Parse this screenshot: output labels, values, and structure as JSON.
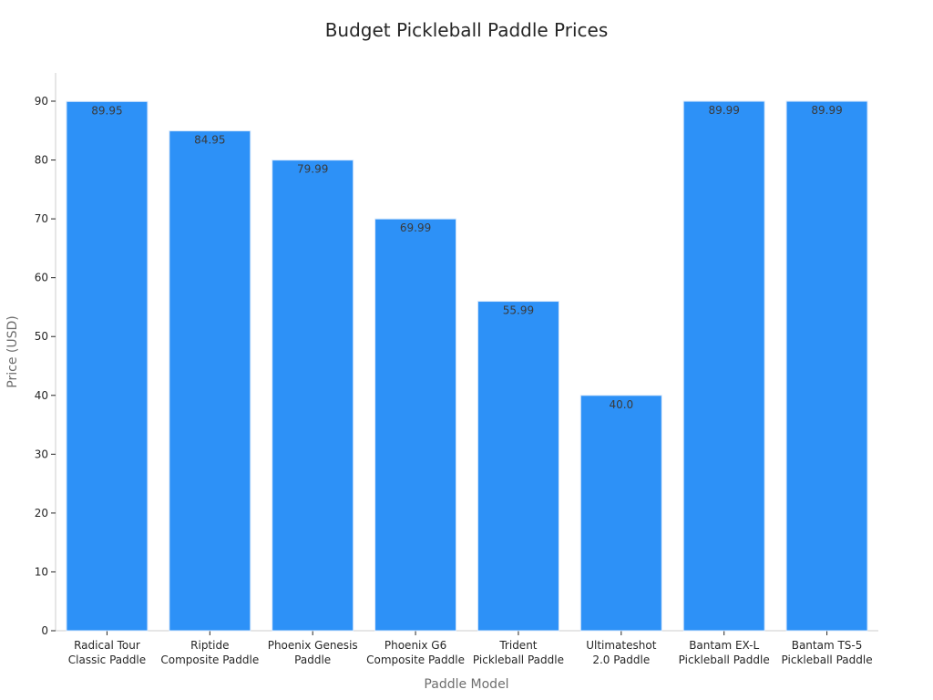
{
  "colors": {
    "bar": "#2d91f7",
    "bar_edge": "#d8e8fb"
  },
  "chart_data": {
    "type": "bar",
    "title": "Budget Pickleball Paddle Prices",
    "xlabel": "Paddle Model",
    "ylabel": "Price (USD)",
    "ylim": [
      0,
      95
    ],
    "yticks": [
      0,
      10,
      20,
      30,
      40,
      50,
      60,
      70,
      80,
      90
    ],
    "grid": false,
    "categories": [
      [
        "Radical Tour",
        "Classic Paddle"
      ],
      [
        "Riptide",
        "Composite Paddle"
      ],
      [
        "Phoenix Genesis",
        "Paddle"
      ],
      [
        "Phoenix G6",
        "Composite Paddle"
      ],
      [
        "Trident",
        "Pickleball Paddle"
      ],
      [
        "Ultimateshot",
        "2.0 Paddle"
      ],
      [
        "Bantam EX-L",
        "Pickleball Paddle"
      ],
      [
        "Bantam TS-5",
        "Pickleball Paddle"
      ]
    ],
    "values": [
      89.95,
      84.95,
      79.99,
      69.99,
      55.99,
      40.0,
      89.99,
      89.99
    ],
    "data_labels": [
      "89.95",
      "84.95",
      "79.99",
      "69.99",
      "55.99",
      "40.0",
      "89.99",
      "89.99"
    ]
  }
}
